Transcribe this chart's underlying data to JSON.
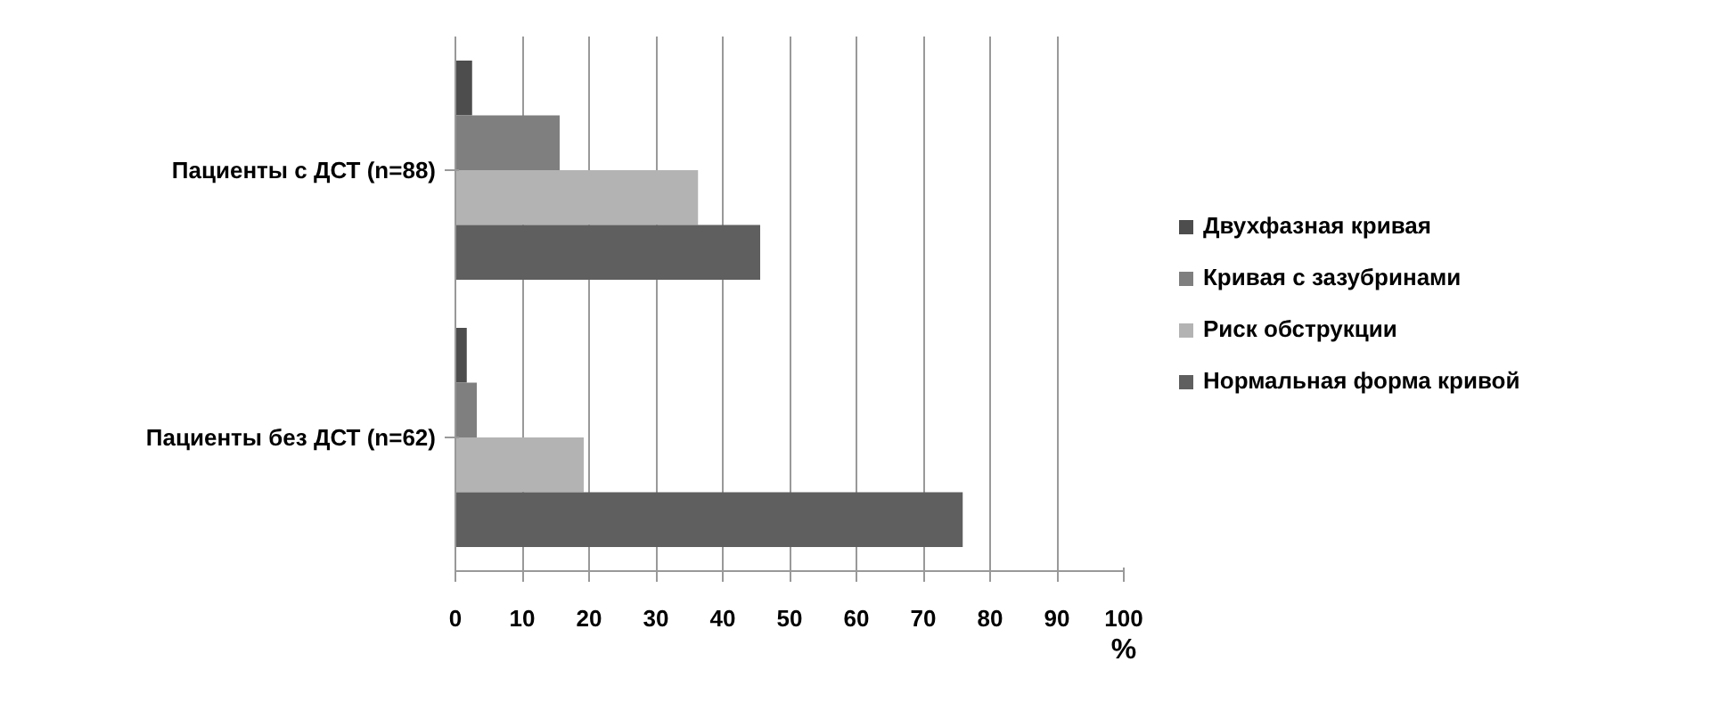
{
  "chart_data": {
    "type": "bar",
    "orientation": "horizontal",
    "xlabel": "%",
    "categories": [
      "Пациенты с ДСТ (n=88)",
      "Пациенты без ДСТ (n=62)"
    ],
    "series": [
      {
        "name": "Двухфазная кривая",
        "color": "#4d4d4d",
        "values": [
          2.5,
          1.7
        ]
      },
      {
        "name": "Кривая с зазубринами",
        "color": "#7f7f7f",
        "values": [
          15.6,
          3.2
        ]
      },
      {
        "name": "Риск обструкции",
        "color": "#b3b3b3",
        "values": [
          36.3,
          19.2
        ]
      },
      {
        "name": "Нормальная форма кривой",
        "color": "#5f5f5f",
        "values": [
          45.6,
          75.9
        ]
      }
    ],
    "xlim": [
      0,
      100
    ],
    "xticks": [
      0,
      10,
      20,
      30,
      40,
      50,
      60,
      70,
      80,
      90,
      100
    ],
    "grid": "x",
    "legend": "right"
  }
}
